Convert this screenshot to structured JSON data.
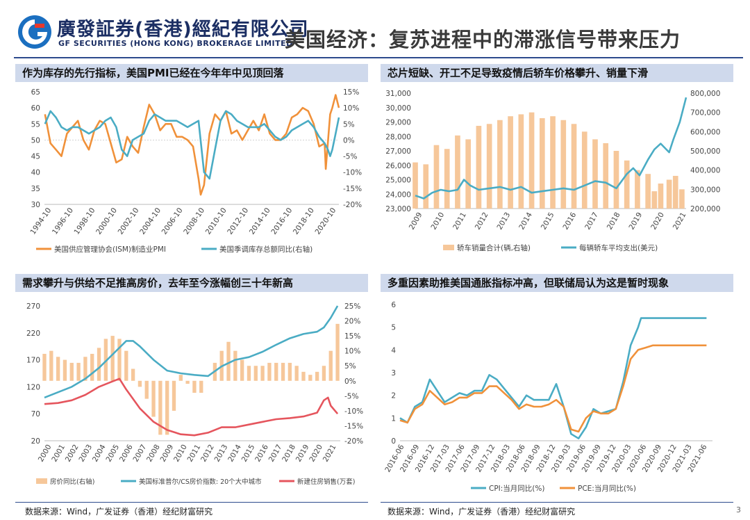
{
  "header": {
    "company_cn": "廣發証券(香港)經紀有限公司",
    "company_en": "GF SECURITIES (HONG KONG) BROKERAGE LIMITED",
    "title": "美国经济：复苏进程中的滞涨信号带来压力"
  },
  "footer": {
    "source_left": "数据来源：Wind，广发证券（香港）经纪财富研究",
    "source_right": "数据来源：Wind，广发证券（香港）经纪财富研究",
    "page_number": "3"
  },
  "colors": {
    "orange": "#f0913a",
    "teal": "#4aacc4",
    "red": "#e5555d",
    "bar": "#f6c79a",
    "header_blue": "#cfd9ec"
  },
  "chart_data": [
    {
      "panel_title": "作为库存的先行指标，美国PMI已经在今年年中见顶回落",
      "type": "line",
      "x_ticks": [
        "1994-10",
        "1996-10",
        "1998-10",
        "2000-10",
        "2002-10",
        "2004-10",
        "2006-10",
        "2008-10",
        "2010-10",
        "2012-10",
        "2014-10",
        "2016-10",
        "2018-10",
        "2020-10"
      ],
      "x_range": [
        1994.75,
        2021.6
      ],
      "y_left": {
        "ticks": [
          "65",
          "60",
          "55",
          "50",
          "45",
          "40",
          "35",
          "30"
        ],
        "range": [
          30,
          65
        ]
      },
      "y_right": {
        "ticks": [
          "15%",
          "10%",
          "5%",
          "0%",
          "-5%",
          "-10%",
          "-15%",
          "-20%"
        ],
        "range": [
          -20,
          15
        ]
      },
      "series": [
        {
          "name": "美国供应管理协会(ISM)制造业PMI",
          "axis": "left",
          "color": "#f0913a",
          "x": [
            1994.8,
            1995.3,
            1995.8,
            1996.3,
            1996.8,
            1997.3,
            1997.8,
            1998.3,
            1998.8,
            1999.3,
            1999.8,
            2000.3,
            2000.8,
            2001.3,
            2001.8,
            2002.3,
            2002.8,
            2003.3,
            2003.8,
            2004.3,
            2004.8,
            2005.3,
            2005.8,
            2006.3,
            2006.8,
            2007.3,
            2007.8,
            2008.3,
            2008.8,
            2009.0,
            2009.3,
            2009.8,
            2010.3,
            2010.8,
            2011.3,
            2011.8,
            2012.3,
            2012.8,
            2013.3,
            2013.8,
            2014.3,
            2014.8,
            2015.3,
            2015.8,
            2016.3,
            2016.8,
            2017.3,
            2017.8,
            2018.3,
            2018.8,
            2019.3,
            2019.8,
            2020.3,
            2020.4,
            2020.8,
            2021.0,
            2021.3,
            2021.6
          ],
          "y": [
            58,
            49,
            47,
            45,
            52,
            54,
            56,
            50,
            47,
            53,
            56,
            55,
            49,
            43,
            44,
            51,
            48,
            46,
            54,
            61,
            58,
            53,
            55,
            55,
            51,
            51,
            50,
            48,
            38,
            33,
            36,
            52,
            58,
            56,
            59,
            52,
            53,
            50,
            53,
            56,
            53,
            58,
            52,
            50,
            50,
            52,
            57,
            58,
            60,
            59,
            55,
            48,
            49,
            41,
            58,
            60,
            64,
            60
          ]
        },
        {
          "name": "美国季调库存总额同比(右轴)",
          "axis": "right",
          "color": "#4aacc4",
          "x": [
            1994.8,
            1995.3,
            1995.8,
            1996.3,
            1996.8,
            1997.3,
            1997.8,
            1998.3,
            1998.8,
            1999.3,
            1999.8,
            2000.3,
            2000.8,
            2001.3,
            2001.8,
            2002.3,
            2002.8,
            2003.3,
            2003.8,
            2004.3,
            2004.8,
            2005.3,
            2005.8,
            2006.3,
            2006.8,
            2007.3,
            2007.8,
            2008.3,
            2008.8,
            2009.3,
            2009.8,
            2010.3,
            2010.8,
            2011.3,
            2011.8,
            2012.3,
            2012.8,
            2013.3,
            2013.8,
            2014.3,
            2014.8,
            2015.3,
            2015.8,
            2016.3,
            2016.8,
            2017.3,
            2017.8,
            2018.3,
            2018.8,
            2019.3,
            2019.8,
            2020.3,
            2020.6,
            2020.8,
            2021.0,
            2021.3,
            2021.6
          ],
          "y": [
            5,
            9,
            7,
            4,
            3,
            4,
            4,
            3,
            2,
            3,
            4,
            6,
            7,
            4,
            -3,
            -5,
            0,
            1,
            2,
            6,
            8,
            7,
            6,
            6,
            6,
            5,
            4,
            5,
            6,
            -10,
            -12,
            -3,
            6,
            9,
            8,
            6,
            5,
            4,
            4,
            4,
            5,
            3,
            1,
            0,
            1,
            3,
            4,
            5,
            6,
            4,
            1,
            -1,
            -3,
            -5,
            -3,
            2,
            7
          ]
        }
      ]
    },
    {
      "panel_title": "芯片短缺、开工不足导致疫情后轿车价格攀升、销量下滑",
      "type": "bar+line",
      "x_ticks": [
        "2009",
        "2010",
        "2011",
        "2012",
        "2013",
        "2014",
        "2015",
        "2016",
        "2017",
        "2018",
        "2019",
        "2020",
        "2021"
      ],
      "x_range": [
        2009.0,
        2021.8
      ],
      "y_left": {
        "ticks": [
          "31,000",
          "30,000",
          "29,000",
          "28,000",
          "27,000",
          "26,000",
          "25,000",
          "24,000",
          "23,000"
        ],
        "range": [
          23000,
          31000
        ]
      },
      "y_right": {
        "ticks": [
          "800,000",
          "700,000",
          "600,000",
          "500,000",
          "400,000",
          "300,000",
          "200,000"
        ],
        "range": [
          200000,
          800000
        ]
      },
      "series": [
        {
          "name": "轿车销量合计(辆,右轴)",
          "axis": "right",
          "type": "bar",
          "color": "#f6c79a",
          "x": [
            2009.0,
            2009.5,
            2010.0,
            2010.5,
            2011.0,
            2011.5,
            2012.0,
            2012.5,
            2013.0,
            2013.5,
            2014.0,
            2014.5,
            2015.0,
            2015.5,
            2016.0,
            2016.5,
            2017.0,
            2017.5,
            2018.0,
            2018.5,
            2019.0,
            2019.5,
            2020.0,
            2020.3,
            2020.6,
            2021.0,
            2021.3,
            2021.6
          ],
          "y": [
            440000,
            430000,
            530000,
            510000,
            580000,
            560000,
            630000,
            640000,
            660000,
            680000,
            690000,
            700000,
            670000,
            680000,
            660000,
            640000,
            600000,
            560000,
            540000,
            500000,
            450000,
            400000,
            380000,
            290000,
            330000,
            350000,
            370000,
            300000
          ]
        },
        {
          "name": "每辆轿车平均支出(美元)",
          "axis": "left",
          "type": "line",
          "color": "#4aacc4",
          "x": [
            2009.0,
            2009.4,
            2009.8,
            2010.2,
            2010.6,
            2011.0,
            2011.3,
            2011.6,
            2012.0,
            2012.5,
            2013.0,
            2013.5,
            2014.0,
            2014.5,
            2015.0,
            2015.5,
            2016.0,
            2016.5,
            2017.0,
            2017.5,
            2018.0,
            2018.5,
            2019.0,
            2019.3,
            2019.6,
            2020.0,
            2020.3,
            2020.6,
            2021.0,
            2021.2,
            2021.5,
            2021.8
          ],
          "y": [
            23900,
            23700,
            24100,
            24300,
            24200,
            24300,
            25000,
            24600,
            24300,
            24400,
            24500,
            24300,
            24500,
            24100,
            24200,
            24300,
            24400,
            24300,
            24600,
            24900,
            24800,
            24400,
            25400,
            25800,
            25300,
            26400,
            27100,
            27500,
            26900,
            27800,
            29000,
            30700
          ]
        }
      ]
    },
    {
      "panel_title": "需求攀升与供给不足推高房价，去年至今涨幅创三十年新高",
      "type": "bar+line",
      "x_ticks": [
        "2000",
        "2001",
        "2002",
        "2003",
        "2004",
        "2005",
        "2006",
        "2007",
        "2008",
        "2009",
        "2010",
        "2011",
        "2012",
        "2013",
        "2014",
        "2015",
        "2016",
        "2017",
        "2018",
        "2019",
        "2020",
        "2021"
      ],
      "x_range": [
        2000.0,
        2021.7
      ],
      "y_left": {
        "ticks": [
          "270",
          "220",
          "170",
          "120",
          "70",
          "20"
        ],
        "range": [
          20,
          270
        ]
      },
      "y_right": {
        "ticks": [
          "25%",
          "20%",
          "15%",
          "10%",
          "5%",
          "0%",
          "-5%",
          "-10%",
          "-15%",
          "-20%"
        ],
        "range": [
          -20,
          25
        ]
      },
      "series": [
        {
          "name": "房价同比(右轴)",
          "axis": "right",
          "type": "bar",
          "color": "#f6c79a",
          "x": [
            2000.0,
            2000.5,
            2001.0,
            2001.5,
            2002.0,
            2002.5,
            2003.0,
            2003.5,
            2004.0,
            2004.5,
            2005.0,
            2005.5,
            2006.0,
            2006.5,
            2007.0,
            2007.5,
            2008.0,
            2008.5,
            2009.0,
            2009.5,
            2010.0,
            2010.5,
            2011.0,
            2011.5,
            2012.0,
            2012.5,
            2013.0,
            2013.5,
            2014.0,
            2014.5,
            2015.0,
            2015.5,
            2016.0,
            2016.5,
            2017.0,
            2017.5,
            2018.0,
            2018.5,
            2019.0,
            2019.5,
            2020.0,
            2020.5,
            2021.0,
            2021.5
          ],
          "y": [
            9,
            10,
            8,
            7,
            6,
            6,
            8,
            9,
            11,
            14,
            15,
            14,
            10,
            4,
            -2,
            -6,
            -12,
            -18,
            -18,
            -10,
            2,
            -1,
            -4,
            -4,
            0,
            6,
            10,
            13,
            10,
            7,
            5,
            5,
            5,
            6,
            6,
            6,
            6,
            5,
            3,
            2,
            3,
            5,
            10,
            19
          ]
        },
        {
          "name": "美国标准普尔/CS房价指数: 20个大中城市",
          "axis": "left",
          "type": "line",
          "color": "#4aacc4",
          "x": [
            2000.0,
            2001.0,
            2002.0,
            2003.0,
            2004.0,
            2005.0,
            2006.0,
            2006.5,
            2007.0,
            2008.0,
            2009.0,
            2010.0,
            2011.0,
            2012.0,
            2013.0,
            2014.0,
            2015.0,
            2016.0,
            2017.0,
            2018.0,
            2019.0,
            2020.0,
            2020.5,
            2021.0,
            2021.5
          ],
          "y": [
            100,
            110,
            120,
            135,
            155,
            180,
            205,
            205,
            195,
            170,
            150,
            145,
            142,
            140,
            158,
            170,
            175,
            185,
            198,
            210,
            218,
            222,
            230,
            248,
            270
          ]
        },
        {
          "name": "新建住房销售(万套)",
          "axis": "left",
          "type": "line",
          "color": "#e5555d",
          "x": [
            2000.0,
            2001.0,
            2002.0,
            2003.0,
            2004.0,
            2005.0,
            2005.5,
            2006.0,
            2007.0,
            2008.0,
            2009.0,
            2010.0,
            2011.0,
            2012.0,
            2013.0,
            2014.0,
            2015.0,
            2016.0,
            2017.0,
            2018.0,
            2019.0,
            2020.0,
            2020.5,
            2020.8,
            2021.0,
            2021.5
          ],
          "y": [
            88,
            90,
            95,
            105,
            120,
            130,
            135,
            115,
            80,
            55,
            40,
            32,
            30,
            35,
            45,
            45,
            50,
            55,
            60,
            62,
            65,
            72,
            95,
            100,
            85,
            70
          ]
        }
      ]
    },
    {
      "panel_title": "多重因素助推美国通胀指标冲高，但联储局认为这是暂时现象",
      "type": "line",
      "x_ticks": [
        "2016-06",
        "2016-09",
        "2016-12",
        "2017-03",
        "2017-06",
        "2017-09",
        "2017-12",
        "2018-03",
        "2018-06",
        "2018-09",
        "2018-12",
        "2019-03",
        "2019-06",
        "2019-09",
        "2019-12",
        "2020-03",
        "2020-06",
        "2020-09",
        "2020-12",
        "2021-03",
        "2021-06"
      ],
      "x_range": [
        0,
        21
      ],
      "y_left": {
        "ticks": [
          "6",
          "5",
          "4",
          "3",
          "2",
          "1",
          "0"
        ],
        "range": [
          0,
          6
        ]
      },
      "series": [
        {
          "name": "CPI:当月同比(%)",
          "axis": "left",
          "color": "#4aacc4",
          "x": [
            0,
            0.5,
            1,
            1.5,
            2,
            3,
            3.5,
            4,
            4.5,
            5,
            5.5,
            6,
            6.5,
            7,
            7.5,
            8,
            8.5,
            9,
            9.5,
            10,
            10.5,
            11,
            11.5,
            12,
            12.5,
            13,
            13.5,
            14,
            14.5,
            15,
            15.5,
            16,
            16.2,
            16.5,
            17,
            17.5,
            18,
            18.5,
            19,
            19.5,
            20,
            20.3,
            20.6
          ],
          "y": [
            1.0,
            0.8,
            1.5,
            1.7,
            2.7,
            1.7,
            1.9,
            2.1,
            2.0,
            2.2,
            2.2,
            2.9,
            2.7,
            2.3,
            1.9,
            1.5,
            2.0,
            1.8,
            1.8,
            1.8,
            2.5,
            1.5,
            0.3,
            0.1,
            0.6,
            1.4,
            1.2,
            1.3,
            1.4,
            2.6,
            4.2,
            5.0,
            5.4,
            5.4,
            5.4,
            5.4,
            5.4,
            5.4,
            5.4,
            5.4,
            5.4,
            5.4,
            5.4
          ]
        },
        {
          "name": "PCE:当月同比(%)",
          "axis": "left",
          "color": "#f0913a",
          "x": [
            0,
            0.5,
            1,
            1.5,
            2,
            3,
            3.5,
            4,
            4.5,
            5,
            5.5,
            6,
            6.5,
            7,
            7.5,
            8,
            8.5,
            9,
            9.5,
            10,
            10.5,
            11,
            11.5,
            12,
            12.5,
            13,
            13.5,
            14,
            14.5,
            15,
            15.5,
            16,
            16.5,
            17,
            17.5,
            18,
            18.5,
            19,
            19.5,
            20,
            20.3,
            20.6
          ],
          "y": [
            0.9,
            0.8,
            1.4,
            1.6,
            2.2,
            1.6,
            1.7,
            1.9,
            1.9,
            2.1,
            2.1,
            2.4,
            2.4,
            2.1,
            1.8,
            1.4,
            1.6,
            1.5,
            1.5,
            1.6,
            1.8,
            1.5,
            0.5,
            0.4,
            1.0,
            1.3,
            1.2,
            1.2,
            1.4,
            2.4,
            3.6,
            4.0,
            4.1,
            4.2,
            4.2,
            4.2,
            4.2,
            4.2,
            4.2,
            4.2,
            4.2,
            4.2
          ]
        }
      ]
    }
  ]
}
